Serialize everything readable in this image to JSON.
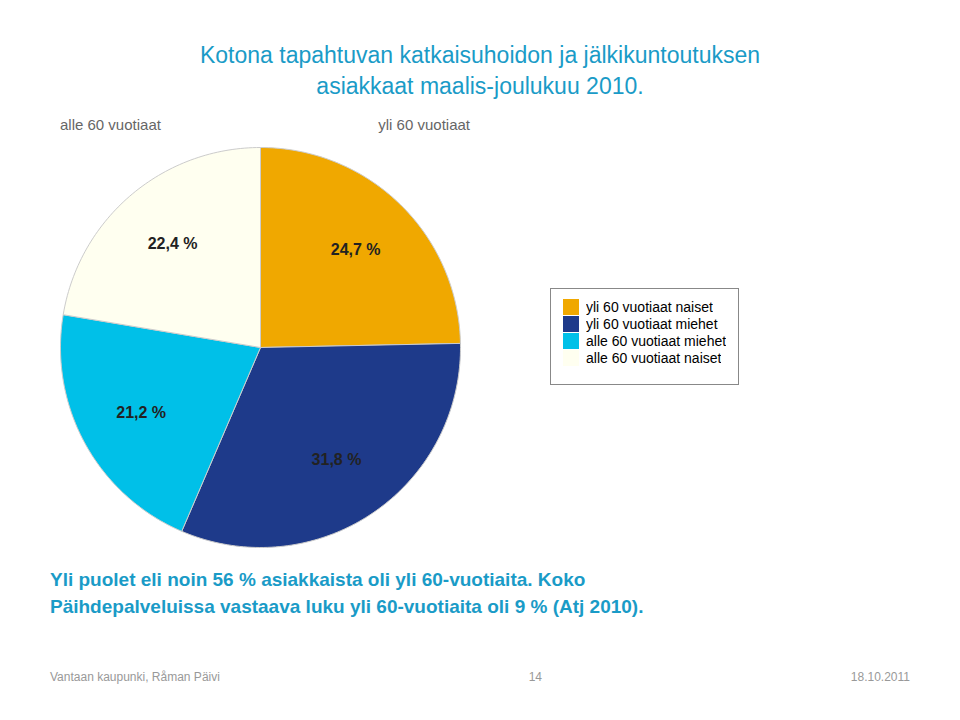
{
  "chart_data": {
    "type": "pie",
    "title": "Kotona tapahtuvan katkaisuhoidon ja jälkikuntoutuksen\nasiakkaat maalis-joulukuu 2010.",
    "categories": [
      "yli 60 vuotiaat naiset",
      "yli 60 vuotiaat miehet",
      "alle 60 vuotiaat miehet",
      "alle 60 vuotiaat naiset"
    ],
    "values": [
      24.7,
      31.8,
      21.2,
      22.4
    ],
    "value_labels": [
      "24,7 %",
      "31,8 %",
      "21,2 %",
      "22,4 %"
    ],
    "colors": [
      "#F0A800",
      "#1E3A8A",
      "#00C0E8",
      "#FFFFF0"
    ],
    "data_labels": true,
    "legend": "right",
    "annotations": [
      "alle 60 vuotiaat",
      "yli 60 vuotiaat",
      "Yli puolet eli noin 56 % asiakkaista oli yli 60-vuotiaita. Koko",
      "Päihdepalveluissa vastaava luku yli 60-vuotiaita oli 9 % (Atj 2010).",
      "Vantaan kaupunki, Råman Päivi",
      "14",
      "18.10.2011"
    ]
  }
}
